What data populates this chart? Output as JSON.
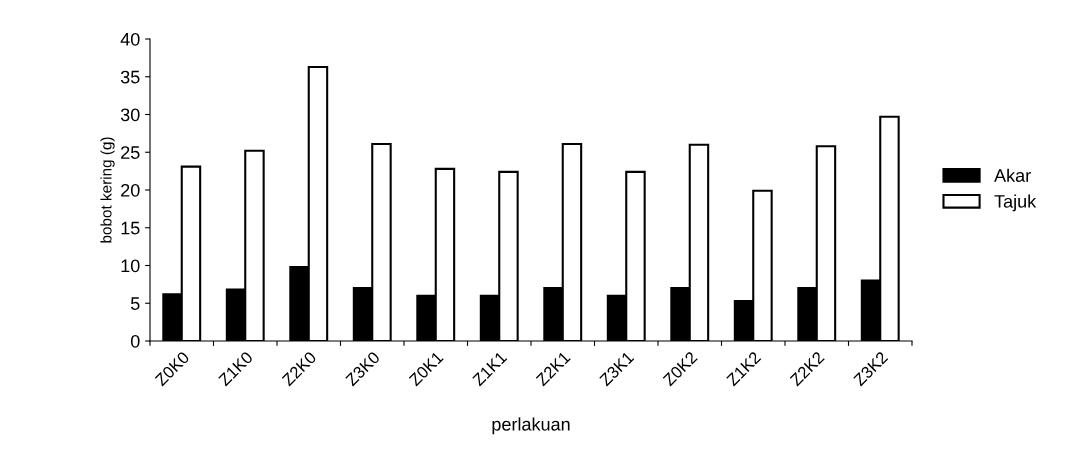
{
  "chart_data": {
    "type": "bar",
    "xlabel": "perlakuan",
    "ylabel": "bobot kering (g)",
    "categories": [
      "Z0K0",
      "Z1K0",
      "Z2K0",
      "Z3K0",
      "Z0K1",
      "Z1K1",
      "Z2K1",
      "Z3K1",
      "Z0K2",
      "Z1K2",
      "Z2K2",
      "Z3K2"
    ],
    "series": [
      {
        "name": "Akar",
        "color": "#000000",
        "values": [
          6.2,
          6.8,
          9.8,
          7.0,
          6.0,
          6.0,
          7.0,
          6.0,
          7.0,
          5.3,
          7.0,
          8.0
        ]
      },
      {
        "name": "Tajuk",
        "color": "#ffffff",
        "values": [
          23.1,
          25.2,
          36.3,
          26.1,
          22.8,
          22.4,
          26.1,
          22.4,
          26.0,
          19.9,
          25.8,
          29.7
        ]
      }
    ],
    "ylim": [
      0,
      40
    ],
    "yticks": [
      0,
      5,
      10,
      15,
      20,
      25,
      30,
      35,
      40
    ],
    "grid": false,
    "legend": "right"
  }
}
